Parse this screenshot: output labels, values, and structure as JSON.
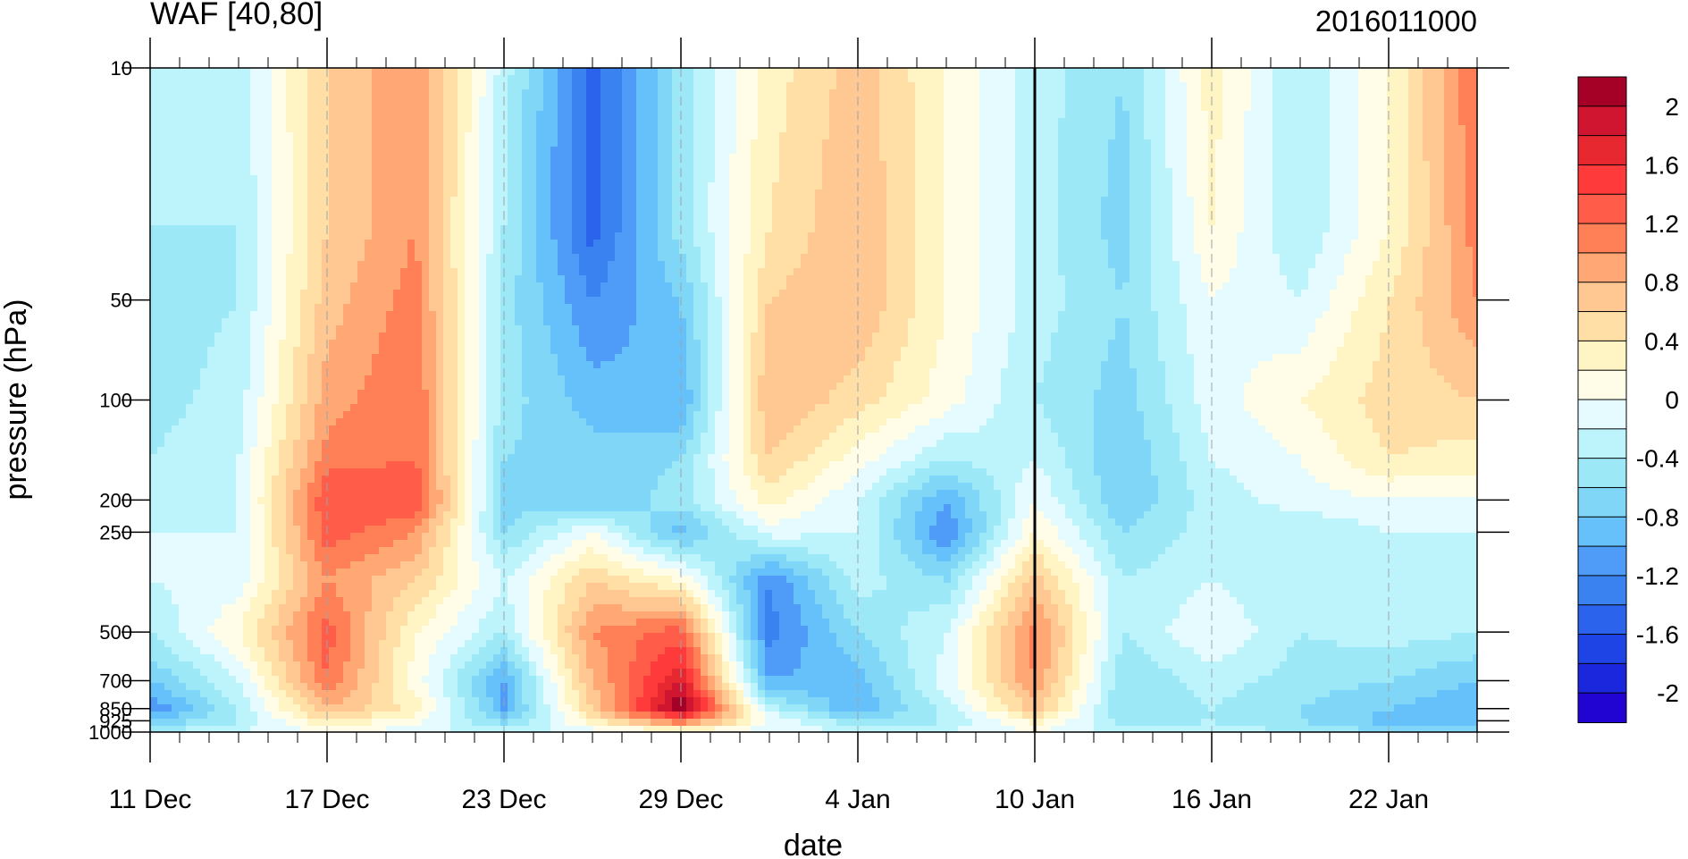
{
  "chart_data": {
    "type": "heatmap",
    "title": "WAF [40,80]",
    "timestamp": "2016011000",
    "xlabel": "date",
    "ylabel": "pressure (hPa)",
    "x_ticks": [
      "11 Dec",
      "17 Dec",
      "23 Dec",
      "29 Dec",
      "4 Jan",
      "10 Jan",
      "16 Jan",
      "22 Jan"
    ],
    "y_ticks": [
      "10",
      "50",
      "100",
      "200",
      "250",
      "500",
      "700",
      "850",
      "925",
      "1000"
    ],
    "y_scale": "log",
    "xlim": [
      "2015-12-11",
      "2016-01-25"
    ],
    "ylim": [
      1000,
      10
    ],
    "contour_levels": [
      -2.2,
      -2.0,
      -1.8,
      -1.6,
      -1.4,
      -1.2,
      -1.0,
      -0.8,
      -0.6,
      -0.4,
      -0.2,
      0,
      0.2,
      0.4,
      0.6,
      0.8,
      1.0,
      1.2,
      1.4,
      1.6,
      1.8,
      2.0,
      2.2
    ],
    "colorbar_labels": [
      "2",
      "1.6",
      "1.2",
      "0.8",
      "0.4",
      "0",
      "-0.4",
      "-0.8",
      "-1.2",
      "-1.6",
      "-2"
    ],
    "colorbar_colors": [
      "#a50026",
      "#cf1530",
      "#e82830",
      "#ff3a3a",
      "#ff5c4a",
      "#ff8057",
      "#ffa876",
      "#ffc892",
      "#ffdfa6",
      "#fff5c4",
      "#fffde8",
      "#e6fbff",
      "#bdf4fb",
      "#9ce8f7",
      "#7fd6f6",
      "#66c0fa",
      "#4e9cf8",
      "#3b82f1",
      "#2c63ec",
      "#1e44e6",
      "#1b27dc",
      "#2204d2"
    ],
    "vertical_line_date": "10 Jan",
    "x_days": [
      0,
      3,
      6,
      9,
      12,
      15,
      18,
      21,
      24,
      27,
      30,
      33,
      36,
      39,
      42,
      45
    ],
    "levels_hpa": [
      10,
      30,
      50,
      100,
      150,
      200,
      250,
      350,
      500,
      700,
      850,
      925,
      1000
    ],
    "field": [
      [
        -0.3,
        -0.3,
        0.6,
        1.0,
        -0.3,
        -1.5,
        -0.5,
        0.3,
        0.7,
        0.2,
        -0.3,
        -0.6,
        0.3,
        -0.4,
        0.2,
        1.2
      ],
      [
        -0.4,
        -0.4,
        0.6,
        1.0,
        -0.4,
        -1.5,
        -0.5,
        0.4,
        0.8,
        0.2,
        -0.3,
        -0.7,
        0.2,
        -0.4,
        0.2,
        1.1
      ],
      [
        -0.5,
        -0.4,
        0.7,
        1.1,
        -0.5,
        -1.2,
        -0.8,
        0.6,
        0.8,
        0.2,
        -0.3,
        -0.6,
        0.0,
        -0.2,
        0.4,
        1.0
      ],
      [
        -0.5,
        -0.3,
        0.9,
        1.2,
        -0.5,
        -0.9,
        -1.0,
        0.8,
        0.5,
        0.1,
        -0.4,
        -0.7,
        -0.1,
        0.2,
        0.5,
        0.6
      ],
      [
        -0.4,
        -0.2,
        1.1,
        1.2,
        -0.6,
        -0.7,
        -0.6,
        0.6,
        0.1,
        -0.4,
        -0.2,
        -0.8,
        -0.2,
        0.0,
        0.4,
        0.3
      ],
      [
        -0.3,
        -0.2,
        1.4,
        1.4,
        -0.7,
        -0.8,
        -0.5,
        0.3,
        -0.2,
        -1.0,
        0.0,
        -0.8,
        -0.3,
        -0.1,
        0.0,
        0.0
      ],
      [
        -0.2,
        -0.2,
        1.3,
        1.0,
        -0.6,
        0.0,
        -0.9,
        -0.1,
        -0.2,
        -1.2,
        0.2,
        -0.6,
        -0.3,
        -0.4,
        -0.2,
        -0.2
      ],
      [
        -0.2,
        -0.1,
        1.0,
        0.6,
        -0.2,
        0.6,
        0.2,
        -1.2,
        -0.3,
        -0.6,
        0.7,
        -0.4,
        -0.2,
        -0.4,
        -0.3,
        -0.3
      ],
      [
        -0.4,
        0.2,
        1.3,
        0.2,
        -0.4,
        1.0,
        1.3,
        -1.3,
        -0.6,
        -0.2,
        1.1,
        -0.4,
        0.0,
        -0.4,
        -0.3,
        -0.4
      ],
      [
        -0.8,
        -0.2,
        1.2,
        0.1,
        -1.0,
        0.8,
        1.8,
        -1.0,
        -0.9,
        -0.1,
        1.0,
        -0.6,
        -0.3,
        -0.5,
        -0.6,
        -0.8
      ],
      [
        -1.2,
        -0.4,
        0.8,
        0.3,
        -1.0,
        0.6,
        2.2,
        -0.3,
        -1.0,
        -0.3,
        0.7,
        -0.6,
        -0.4,
        -0.6,
        -0.8,
        -1.0
      ],
      [
        -0.8,
        -0.4,
        0.4,
        0.1,
        -0.7,
        0.3,
        1.2,
        0.0,
        -0.6,
        -0.4,
        0.3,
        -0.5,
        -0.4,
        -0.6,
        -0.9,
        -0.9
      ],
      [
        -0.4,
        -0.2,
        0.0,
        -0.1,
        -0.3,
        -0.1,
        0.1,
        -0.1,
        -0.2,
        -0.2,
        0.0,
        -0.3,
        -0.3,
        -0.4,
        -0.6,
        -0.6
      ]
    ]
  }
}
